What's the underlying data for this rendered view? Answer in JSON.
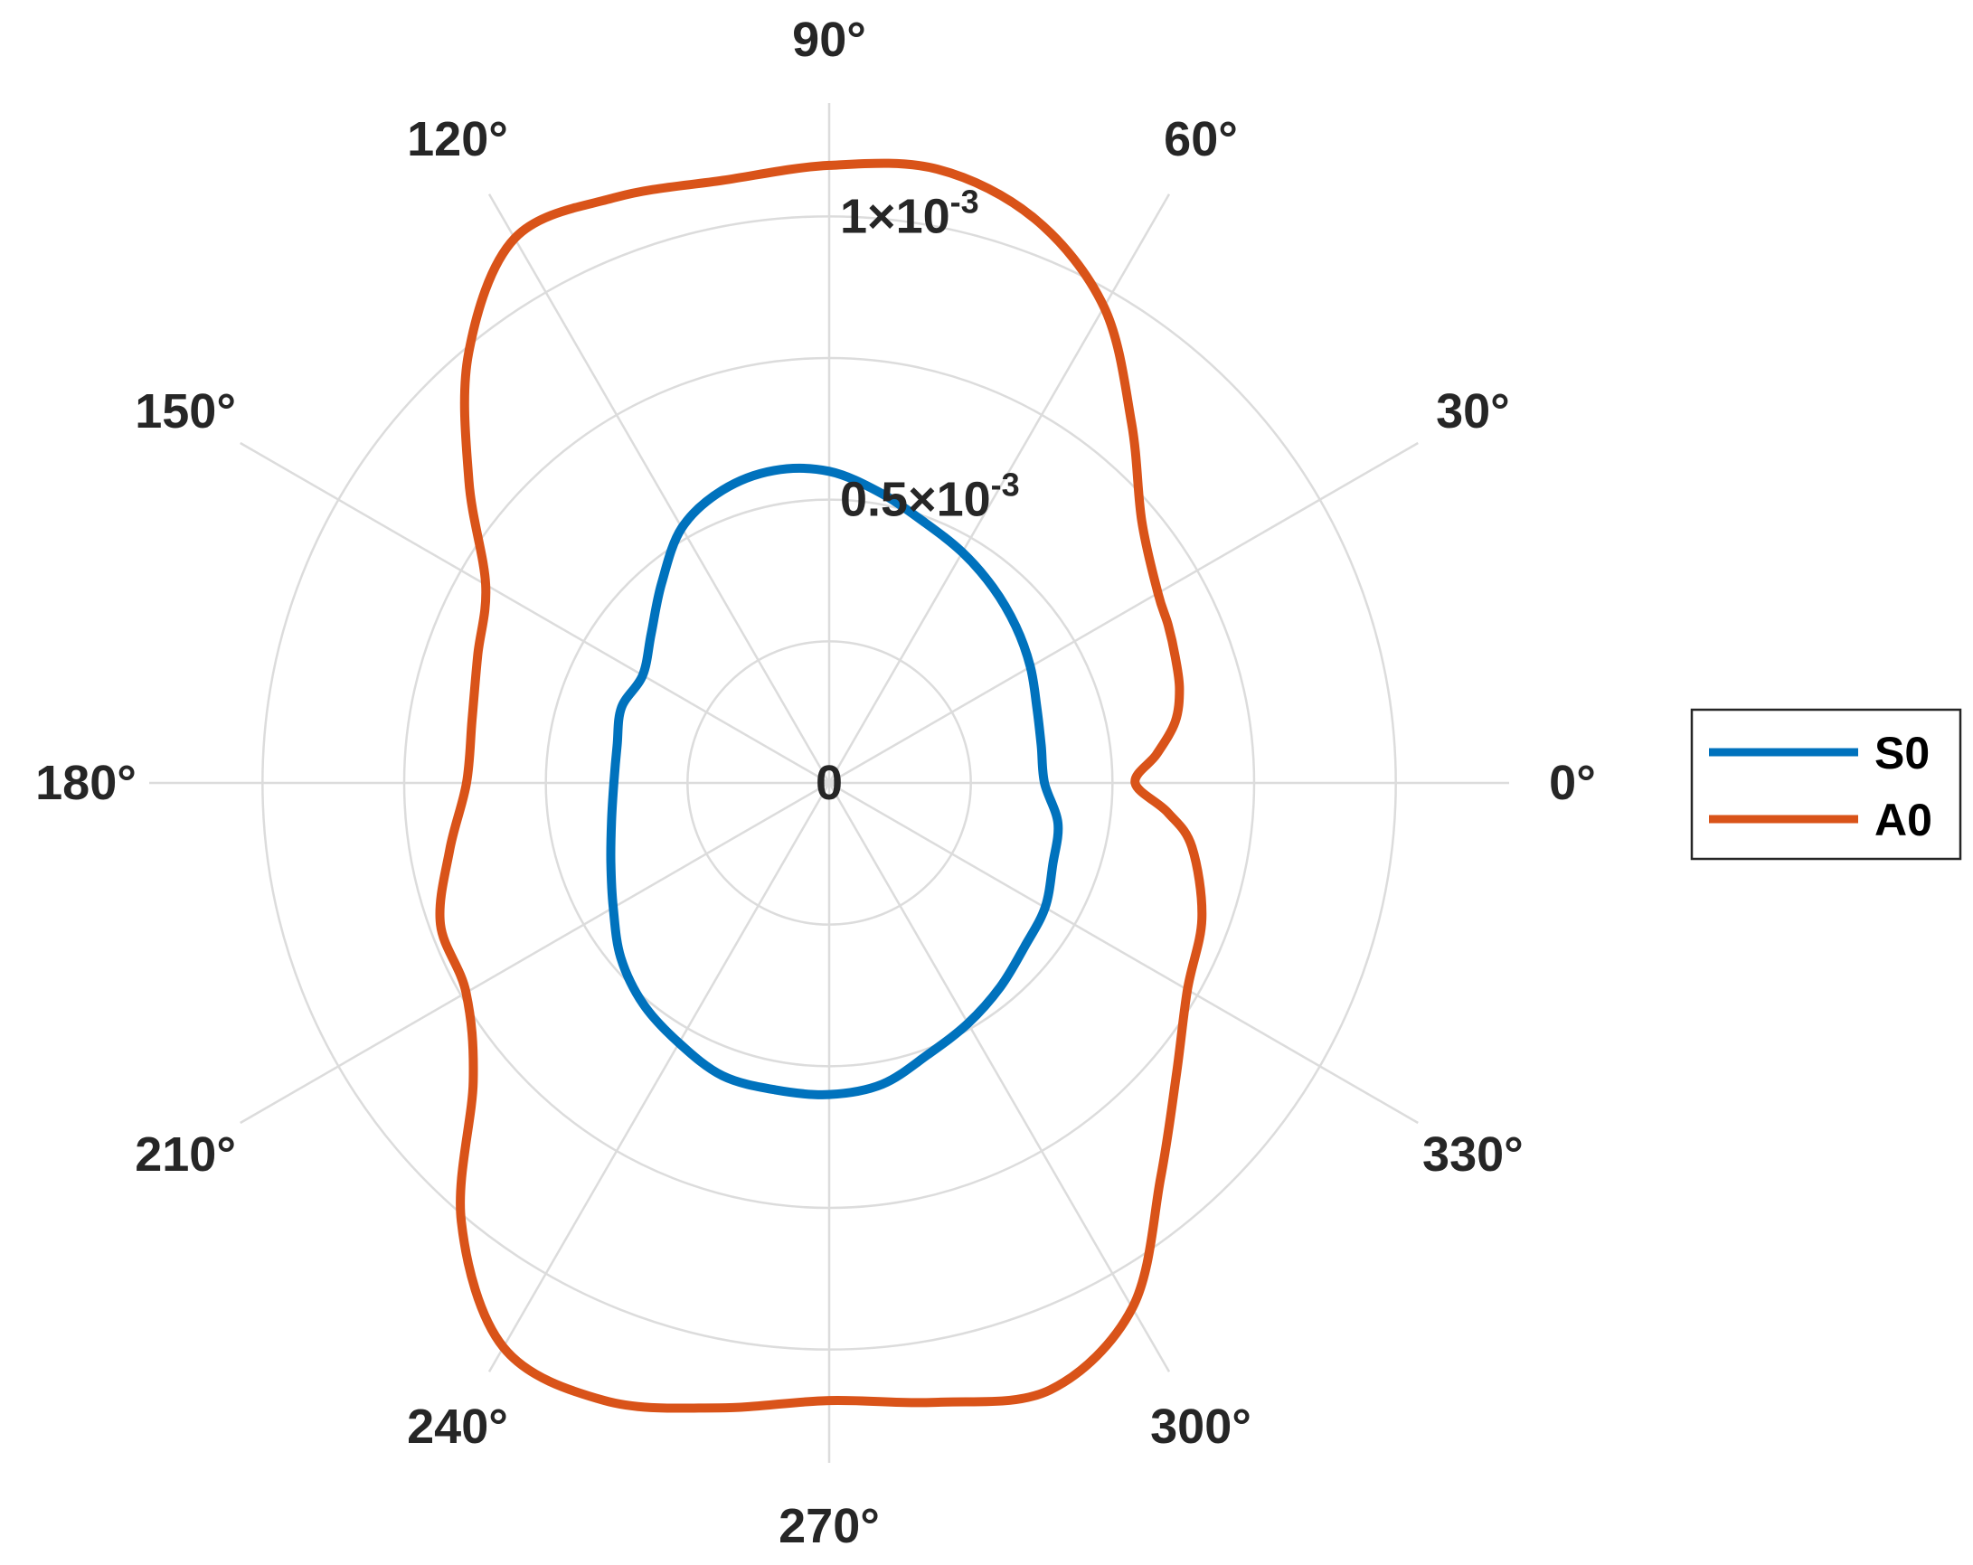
{
  "chart_data": {
    "type": "polar-line",
    "title": "",
    "theta_unit": "degrees",
    "rlim": [
      0,
      0.0012
    ],
    "r_ticks": [
      {
        "value": 0,
        "label_main": "0",
        "label_exp": ""
      },
      {
        "value": 0.0005,
        "label_main": "0.5×10",
        "label_exp": "-3"
      },
      {
        "value": 0.001,
        "label_main": "1×10",
        "label_exp": "-3"
      }
    ],
    "theta_ticks": [
      0,
      30,
      60,
      90,
      120,
      150,
      180,
      210,
      240,
      270,
      300,
      330
    ],
    "theta_tick_labels": [
      "0°",
      "30°",
      "60°",
      "90°",
      "120°",
      "150°",
      "180°",
      "210°",
      "240°",
      "270°",
      "300°",
      "330°"
    ],
    "grid": true,
    "legend_position": "right",
    "series": [
      {
        "name": "S0",
        "color": "#0072BD",
        "theta": [
          0,
          10,
          20,
          30,
          40,
          50,
          60,
          70,
          80,
          90,
          100,
          110,
          120,
          130,
          140,
          150,
          160,
          170,
          180,
          190,
          200,
          210,
          220,
          230,
          240,
          250,
          260,
          270,
          280,
          290,
          300,
          310,
          320,
          330,
          340,
          350,
          360
        ],
        "r": [
          0.00038,
          0.00038,
          0.00039,
          0.00041,
          0.00043,
          0.00045,
          0.00047,
          0.00049,
          0.00052,
          0.00055,
          0.00056,
          0.00055,
          0.00052,
          0.00046,
          0.00041,
          0.00038,
          0.00039,
          0.00038,
          0.00038,
          0.00039,
          0.00041,
          0.00044,
          0.00048,
          0.00051,
          0.00053,
          0.00055,
          0.00055,
          0.00055,
          0.00054,
          0.00051,
          0.00049,
          0.00047,
          0.00045,
          0.00044,
          0.00042,
          0.00041,
          0.00038
        ]
      },
      {
        "name": "A0",
        "color": "#D95319",
        "theta": [
          0,
          5,
          10,
          15,
          20,
          25,
          30,
          40,
          50,
          60,
          70,
          80,
          90,
          100,
          110,
          120,
          130,
          140,
          150,
          160,
          170,
          180,
          190,
          200,
          210,
          220,
          230,
          240,
          250,
          260,
          270,
          280,
          290,
          300,
          310,
          320,
          330,
          340,
          350,
          355,
          360
        ],
        "r": [
          0.00054,
          0.00058,
          0.00062,
          0.00064,
          0.00065,
          0.00066,
          0.00067,
          0.00072,
          0.00083,
          0.00097,
          0.00106,
          0.0011,
          0.00109,
          0.00108,
          0.0011,
          0.00111,
          0.00099,
          0.00083,
          0.0007,
          0.00066,
          0.00064,
          0.00064,
          0.00068,
          0.00073,
          0.00074,
          0.00082,
          0.00101,
          0.00115,
          0.00116,
          0.00112,
          0.00109,
          0.00111,
          0.00114,
          0.00107,
          0.00091,
          0.0008,
          0.00073,
          0.0007,
          0.00065,
          0.0006,
          0.00054
        ]
      }
    ]
  }
}
